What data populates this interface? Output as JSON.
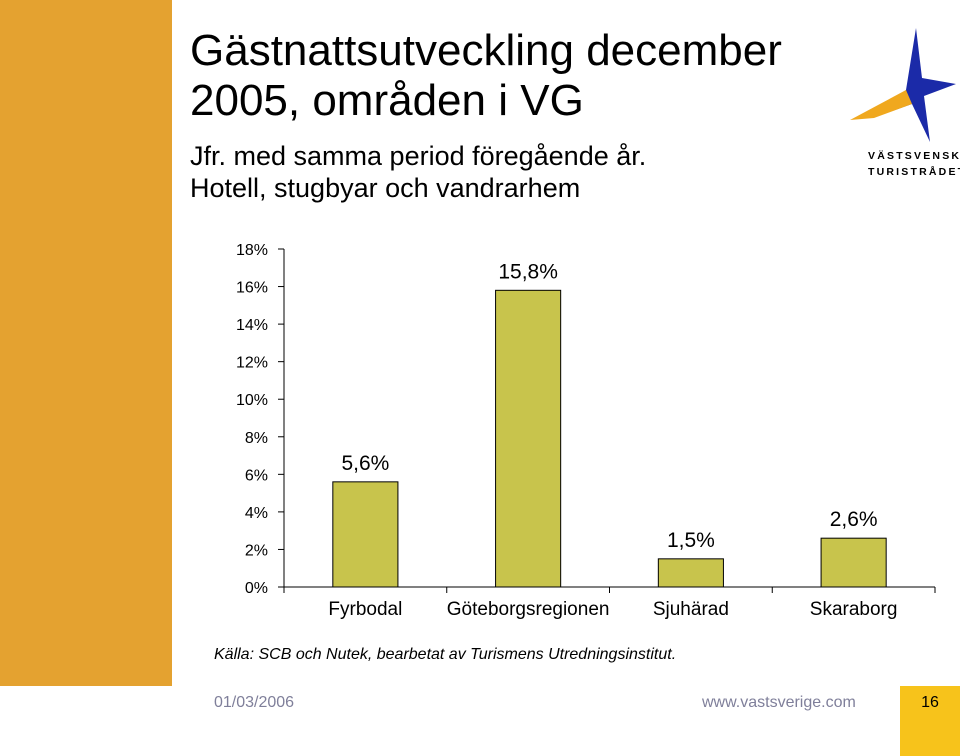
{
  "slide": {
    "title": "Gästnattsutveckling december 2005, områden i VG",
    "subtitle_line1": "Jfr. med samma period föregående år.",
    "subtitle_line2": "Hotell, stugbyar och vandrarhem",
    "source": "Källa: SCB och Nutek, bearbetat av Turismens Utredningsinstitut.",
    "date": "01/03/2006",
    "url": "www.vastsverige.com",
    "page_number": "16"
  },
  "logo": {
    "line1": "VÄSTSVENSKA",
    "line2": "TURISTRÅDET",
    "icon": "star-logo-icon"
  },
  "colors": {
    "sidebar": "#e4a230",
    "bar": "#c8c44c",
    "page_box": "#f7c31b",
    "logo_blue": "#1b2aa8",
    "logo_orange": "#f0a81e"
  },
  "chart_data": {
    "type": "bar",
    "categories": [
      "Fyrbodal",
      "Göteborgsregionen",
      "Sjuhärad",
      "Skaraborg"
    ],
    "values": [
      5.6,
      15.8,
      1.5,
      2.6
    ],
    "data_labels": [
      "5,6%",
      "15,8%",
      "1,5%",
      "2,6%"
    ],
    "ylim": [
      0,
      18
    ],
    "yticks": [
      "0%",
      "2%",
      "4%",
      "6%",
      "8%",
      "10%",
      "12%",
      "14%",
      "16%",
      "18%"
    ],
    "grid": false,
    "legend": "none"
  }
}
